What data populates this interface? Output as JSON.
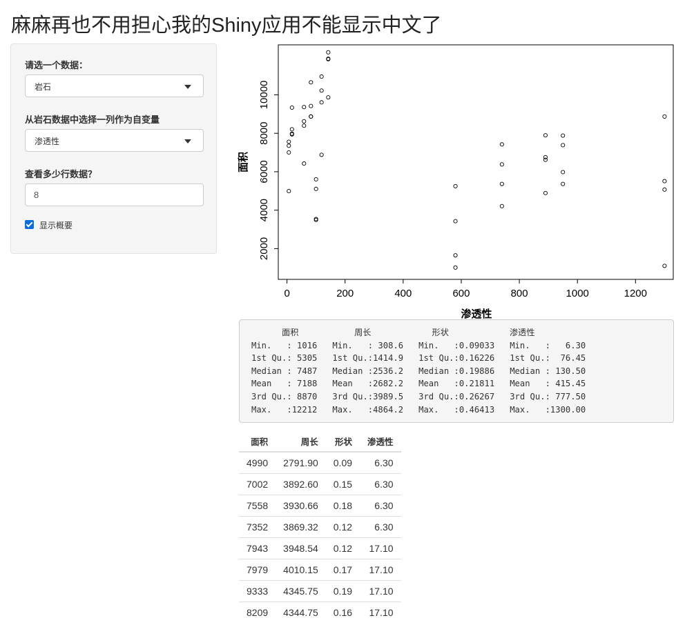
{
  "app": {
    "title_cjk": "麻麻再也不用担心我的",
    "title_latin": "Shiny",
    "title_suffix": "应用不能显示中文了"
  },
  "sidebar": {
    "dataset_label": "请选一个数据：",
    "dataset_value": "岩石",
    "column_label": "从岩石数据中选择一列作为自变量",
    "column_value": "渗透性",
    "rows_label": "查看多少行数据？",
    "rows_value": "8",
    "summary_checkbox_label": "显示概要",
    "summary_checked": true
  },
  "chart_data": {
    "type": "scatter",
    "xlabel": "渗透性",
    "ylabel": "面积",
    "xlim": [
      -30,
      1330
    ],
    "ylim": [
      400,
      12600
    ],
    "xticks": [
      0,
      200,
      400,
      600,
      800,
      1000,
      1200
    ],
    "yticks": [
      2000,
      4000,
      6000,
      8000,
      10000
    ],
    "grid": false,
    "points": [
      [
        6.3,
        4990
      ],
      [
        6.3,
        7002
      ],
      [
        6.3,
        7558
      ],
      [
        6.3,
        7352
      ],
      [
        17.1,
        7943
      ],
      [
        17.1,
        7979
      ],
      [
        17.1,
        9333
      ],
      [
        17.1,
        8209
      ],
      [
        58.6,
        8393
      ],
      [
        58.6,
        6425
      ],
      [
        58.6,
        9364
      ],
      [
        58.6,
        8624
      ],
      [
        82.4,
        10651
      ],
      [
        82.4,
        8868
      ],
      [
        82.4,
        9417
      ],
      [
        82.4,
        8874
      ],
      [
        100,
        5605
      ],
      [
        100,
        5106
      ],
      [
        100,
        3495
      ],
      [
        100,
        3540
      ],
      [
        119,
        6880
      ],
      [
        119,
        10950
      ],
      [
        119,
        9609
      ],
      [
        119,
        10223
      ],
      [
        142,
        11878
      ],
      [
        142,
        9867
      ],
      [
        142,
        12212
      ],
      [
        142,
        11852
      ],
      [
        580,
        1016
      ],
      [
        580,
        1650
      ],
      [
        580,
        3428
      ],
      [
        580,
        5246
      ],
      [
        740,
        4210
      ],
      [
        740,
        5364
      ],
      [
        740,
        7420
      ],
      [
        740,
        6381
      ],
      [
        890,
        4890
      ],
      [
        890,
        6620
      ],
      [
        890,
        6755
      ],
      [
        890,
        7895
      ],
      [
        950,
        5980
      ],
      [
        950,
        5363
      ],
      [
        950,
        7382
      ],
      [
        950,
        7880
      ],
      [
        1300,
        1103
      ],
      [
        1300,
        5070
      ],
      [
        1300,
        8870
      ],
      [
        1300,
        5510
      ]
    ]
  },
  "summary": {
    "header": "      面积           周长            形状            渗透性",
    "lines": [
      "Min.   : 1016   Min.   : 308.6   Min.   :0.09033   Min.   :   6.30",
      "1st Qu.: 5305   1st Qu.:1414.9   1st Qu.:0.16226   1st Qu.:  76.45",
      "Median : 7487   Median :2536.2   Median :0.19886   Median : 130.50",
      "Mean   : 7188   Mean   :2682.2   Mean   :0.21811   Mean   : 415.45",
      "3rd Qu.: 8870   3rd Qu.:3989.5   3rd Qu.:0.26267   3rd Qu.: 777.50",
      "Max.   :12212   Max.   :4864.2   Max.   :0.46413   Max.   :1300.00"
    ]
  },
  "table": {
    "headers": [
      "面积",
      "周长",
      "形状",
      "渗透性"
    ],
    "rows": [
      [
        "4990",
        "2791.90",
        "0.09",
        "6.30"
      ],
      [
        "7002",
        "3892.60",
        "0.15",
        "6.30"
      ],
      [
        "7558",
        "3930.66",
        "0.18",
        "6.30"
      ],
      [
        "7352",
        "3869.32",
        "0.12",
        "6.30"
      ],
      [
        "7943",
        "3948.54",
        "0.12",
        "17.10"
      ],
      [
        "7979",
        "4010.15",
        "0.17",
        "17.10"
      ],
      [
        "9333",
        "4345.75",
        "0.19",
        "17.10"
      ],
      [
        "8209",
        "4344.75",
        "0.16",
        "17.10"
      ]
    ]
  }
}
